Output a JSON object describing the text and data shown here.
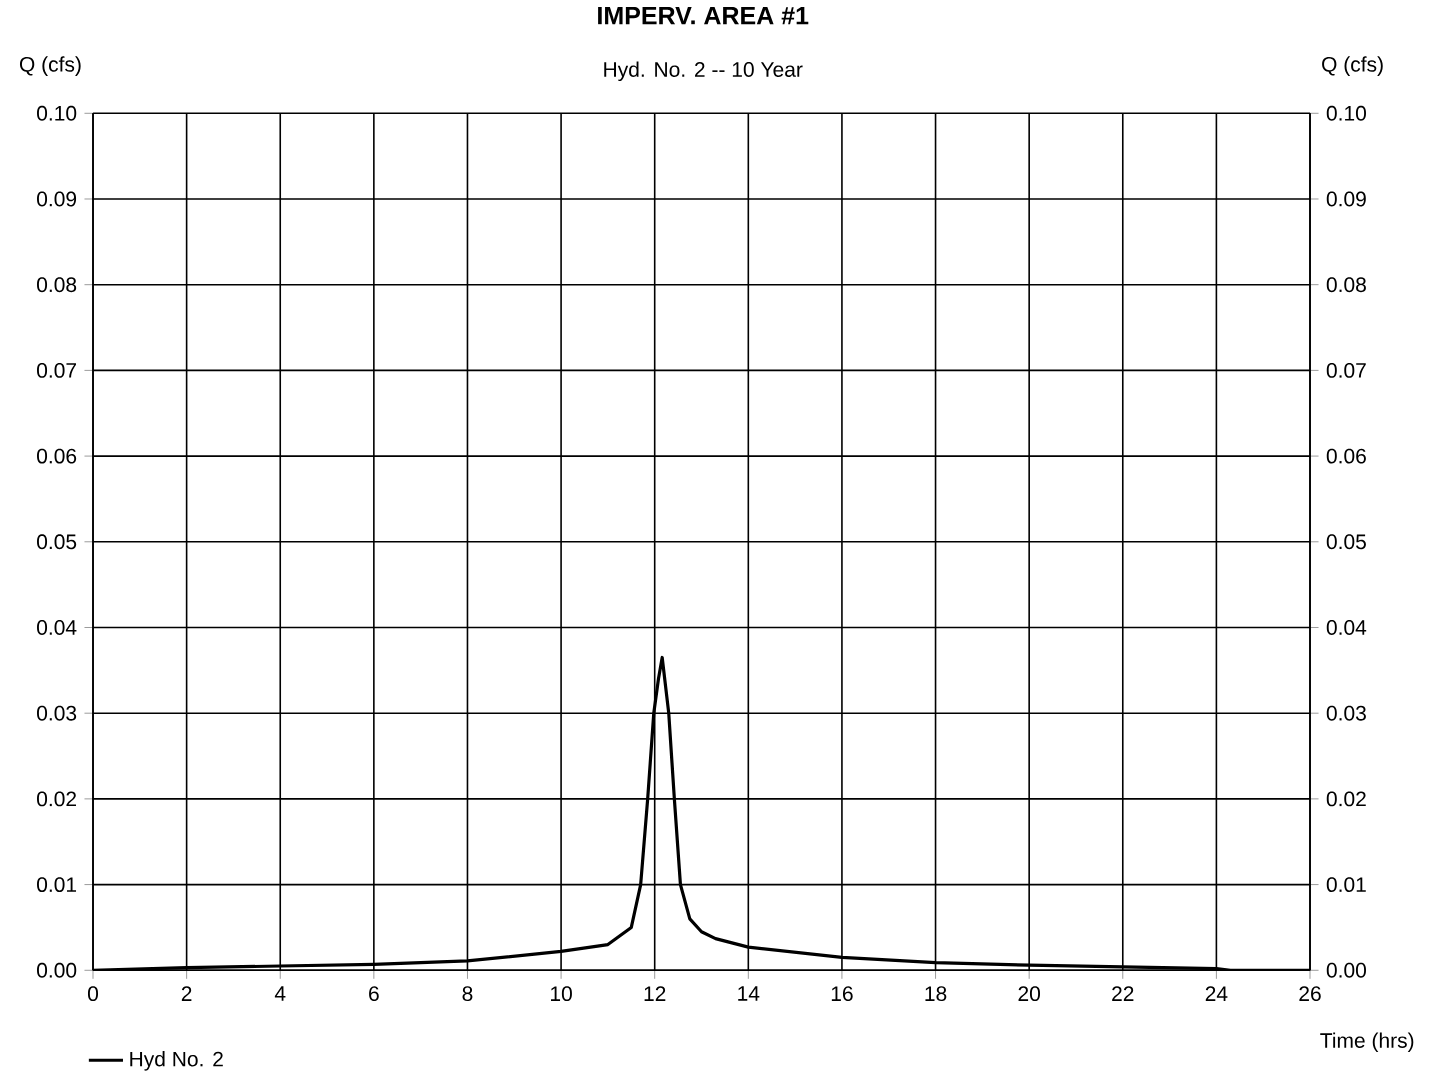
{
  "chart_data": {
    "type": "line",
    "title": "IMPERV. AREA #1",
    "subtitle": "Hyd. No. 2 -- 10 Year",
    "xlabel": "Time (hrs)",
    "ylabel": "Q (cfs)",
    "y2label": "Q (cfs)",
    "x": [
      0,
      2,
      4,
      6,
      8,
      10,
      11,
      11.5,
      11.7,
      11.85,
      11.98,
      12.08,
      12.16,
      12.3,
      12.42,
      12.55,
      12.75,
      13.0,
      13.3,
      14,
      16,
      18,
      20,
      22,
      24,
      24.3,
      26
    ],
    "series": [
      {
        "name": "Hyd No. 2",
        "color": "#000000",
        "values": [
          0,
          0.0003,
          0.0005,
          0.0007,
          0.0011,
          0.0022,
          0.003,
          0.005,
          0.01,
          0.02,
          0.03,
          0.034,
          0.0365,
          0.03,
          0.02,
          0.01,
          0.006,
          0.0045,
          0.0037,
          0.0027,
          0.0015,
          0.0009,
          0.0006,
          0.0004,
          0.0002,
          0,
          0
        ]
      }
    ],
    "xlim": [
      0,
      26
    ],
    "xticks": [
      0,
      2,
      4,
      6,
      8,
      10,
      12,
      14,
      16,
      18,
      20,
      22,
      24,
      26
    ],
    "ylim": [
      0,
      0.1
    ],
    "yticks": [
      {
        "value": 0,
        "label": "0.00"
      },
      {
        "value": 0.01,
        "label": "0.01"
      },
      {
        "value": 0.02,
        "label": "0.02"
      },
      {
        "value": 0.03,
        "label": "0.03"
      },
      {
        "value": 0.04,
        "label": "0.04"
      },
      {
        "value": 0.05,
        "label": "0.05"
      },
      {
        "value": 0.06,
        "label": "0.06"
      },
      {
        "value": 0.07,
        "label": "0.07"
      },
      {
        "value": 0.08,
        "label": "0.08"
      },
      {
        "value": 0.09,
        "label": "0.09"
      },
      {
        "value": 0.1,
        "label": "0.10"
      }
    ],
    "y2lim": [
      0,
      0.1
    ],
    "y2ticks": [
      {
        "value": 0,
        "label": "0.00"
      },
      {
        "value": 0.01,
        "label": "0.01"
      },
      {
        "value": 0.02,
        "label": "0.02"
      },
      {
        "value": 0.03,
        "label": "0.03"
      },
      {
        "value": 0.04,
        "label": "0.04"
      },
      {
        "value": 0.05,
        "label": "0.05"
      },
      {
        "value": 0.06,
        "label": "0.06"
      },
      {
        "value": 0.07,
        "label": "0.07"
      },
      {
        "value": 0.08,
        "label": "0.08"
      },
      {
        "value": 0.09,
        "label": "0.09"
      },
      {
        "value": 0.1,
        "label": "0.10"
      }
    ],
    "grid": true,
    "legend": "bottom left",
    "marker": "none",
    "line_style": "solid"
  }
}
